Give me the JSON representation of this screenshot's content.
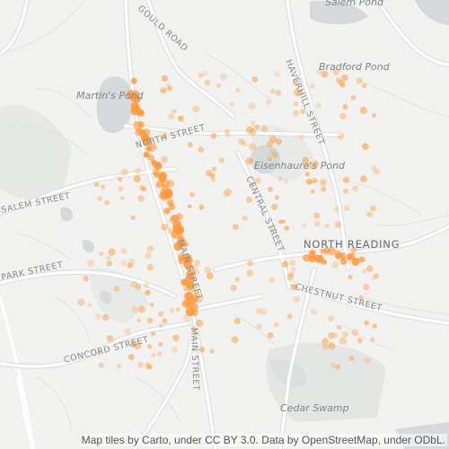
{
  "water_labels": [
    "Salem Pond",
    "Bradford Pond",
    "Martin's Pond",
    "Eisenhaure's Pond",
    "Cedar Swamp"
  ],
  "road_labels": [
    "GOULD ROAD",
    "HAVERHILL STREET",
    "NORTH STREET",
    "SALEM STREET",
    "CENTRAL STREET",
    "MAIN STREET",
    "PARK STREET",
    "CHESTNUT STREET",
    "CONCORD STREET",
    "MAIN STREET"
  ],
  "place_labels": [
    "NORTH READING"
  ],
  "attribution": "Map tiles by Carto, under CC BY 3.0. Data by OpenStreetMap, under ODbL.",
  "colors": {
    "background": "#f2f2f0",
    "water": "#d4d9da",
    "park": "#e3e6e3",
    "road": "#ffffff",
    "road_casing": "#dcdcdc",
    "point": "#ff9a3c"
  }
}
